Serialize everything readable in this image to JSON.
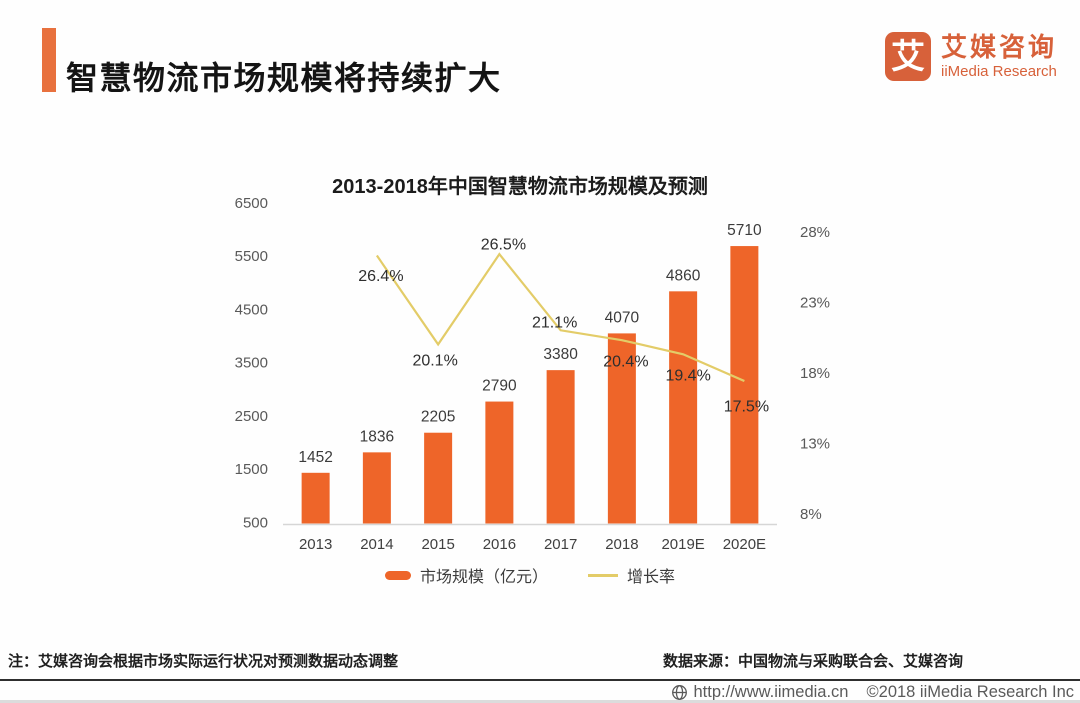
{
  "header": {
    "title": "智慧物流市场规模将持续扩大",
    "logo": {
      "glyph": "艾",
      "name_cn": "艾媒咨询",
      "name_en": "iiMedia Research"
    }
  },
  "chart_data": {
    "type": "bar",
    "title": "2013-2018年中国智慧物流市场规模及预测",
    "categories": [
      "2013",
      "2014",
      "2015",
      "2016",
      "2017",
      "2018",
      "2019E",
      "2020E"
    ],
    "series": [
      {
        "name": "市场规模（亿元）",
        "type": "bar",
        "axis": "left",
        "color": "#EE6529",
        "values": [
          1452,
          1836,
          2205,
          2790,
          3380,
          4070,
          4860,
          5710
        ]
      },
      {
        "name": "增长率",
        "type": "line",
        "axis": "right",
        "color": "#E3CC68",
        "values": [
          null,
          26.4,
          20.1,
          26.5,
          21.1,
          20.4,
          19.4,
          17.5
        ],
        "labels": [
          "",
          "26.4%",
          "20.1%",
          "26.5%",
          "21.1%",
          "20.4%",
          "19.4%",
          "17.5%"
        ],
        "label_offsets": [
          [
            0,
            0
          ],
          [
            4,
            21
          ],
          [
            -3,
            17
          ],
          [
            4,
            -9
          ],
          [
            -6,
            -7
          ],
          [
            4,
            22
          ],
          [
            5,
            22
          ],
          [
            2,
            26
          ]
        ]
      }
    ],
    "left_axis": {
      "min": 500,
      "max": 6500,
      "step": 1000,
      "ticks": [
        "500",
        "1500",
        "2500",
        "3500",
        "4500",
        "5500",
        "6500"
      ]
    },
    "right_axis": {
      "min": 8,
      "max": 28,
      "step": 5,
      "ticks": [
        "8%",
        "13%",
        "18%",
        "23%",
        "28%"
      ]
    },
    "grid": false,
    "legend_position": "bottom"
  },
  "legend": {
    "bar_label": "市场规模（亿元）",
    "line_label": "增长率"
  },
  "footnote": {
    "note": "注：艾媒咨询会根据市场实际运行状况对预测数据动态调整",
    "source": "数据来源：中国物流与采购联合会、艾媒咨询"
  },
  "footer": {
    "url": "http://www.iimedia.cn",
    "copyright": "©2018 iiMedia Research Inc"
  },
  "colors": {
    "bar": "#EE6529",
    "line": "#E3CC68",
    "accent": "#E8713E",
    "logo": "#D7613A",
    "axis_line": "#D6D6D6"
  }
}
